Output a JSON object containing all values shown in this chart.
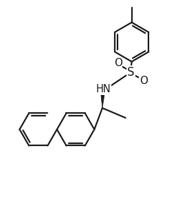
{
  "background_color": "#ffffff",
  "line_color": "#1a1a1a",
  "text_color": "#1a1a1a",
  "line_width": 1.6,
  "figsize": [
    2.59,
    3.02
  ],
  "dpi": 100,
  "xlim": [
    0,
    10
  ],
  "ylim": [
    0,
    11.65
  ]
}
